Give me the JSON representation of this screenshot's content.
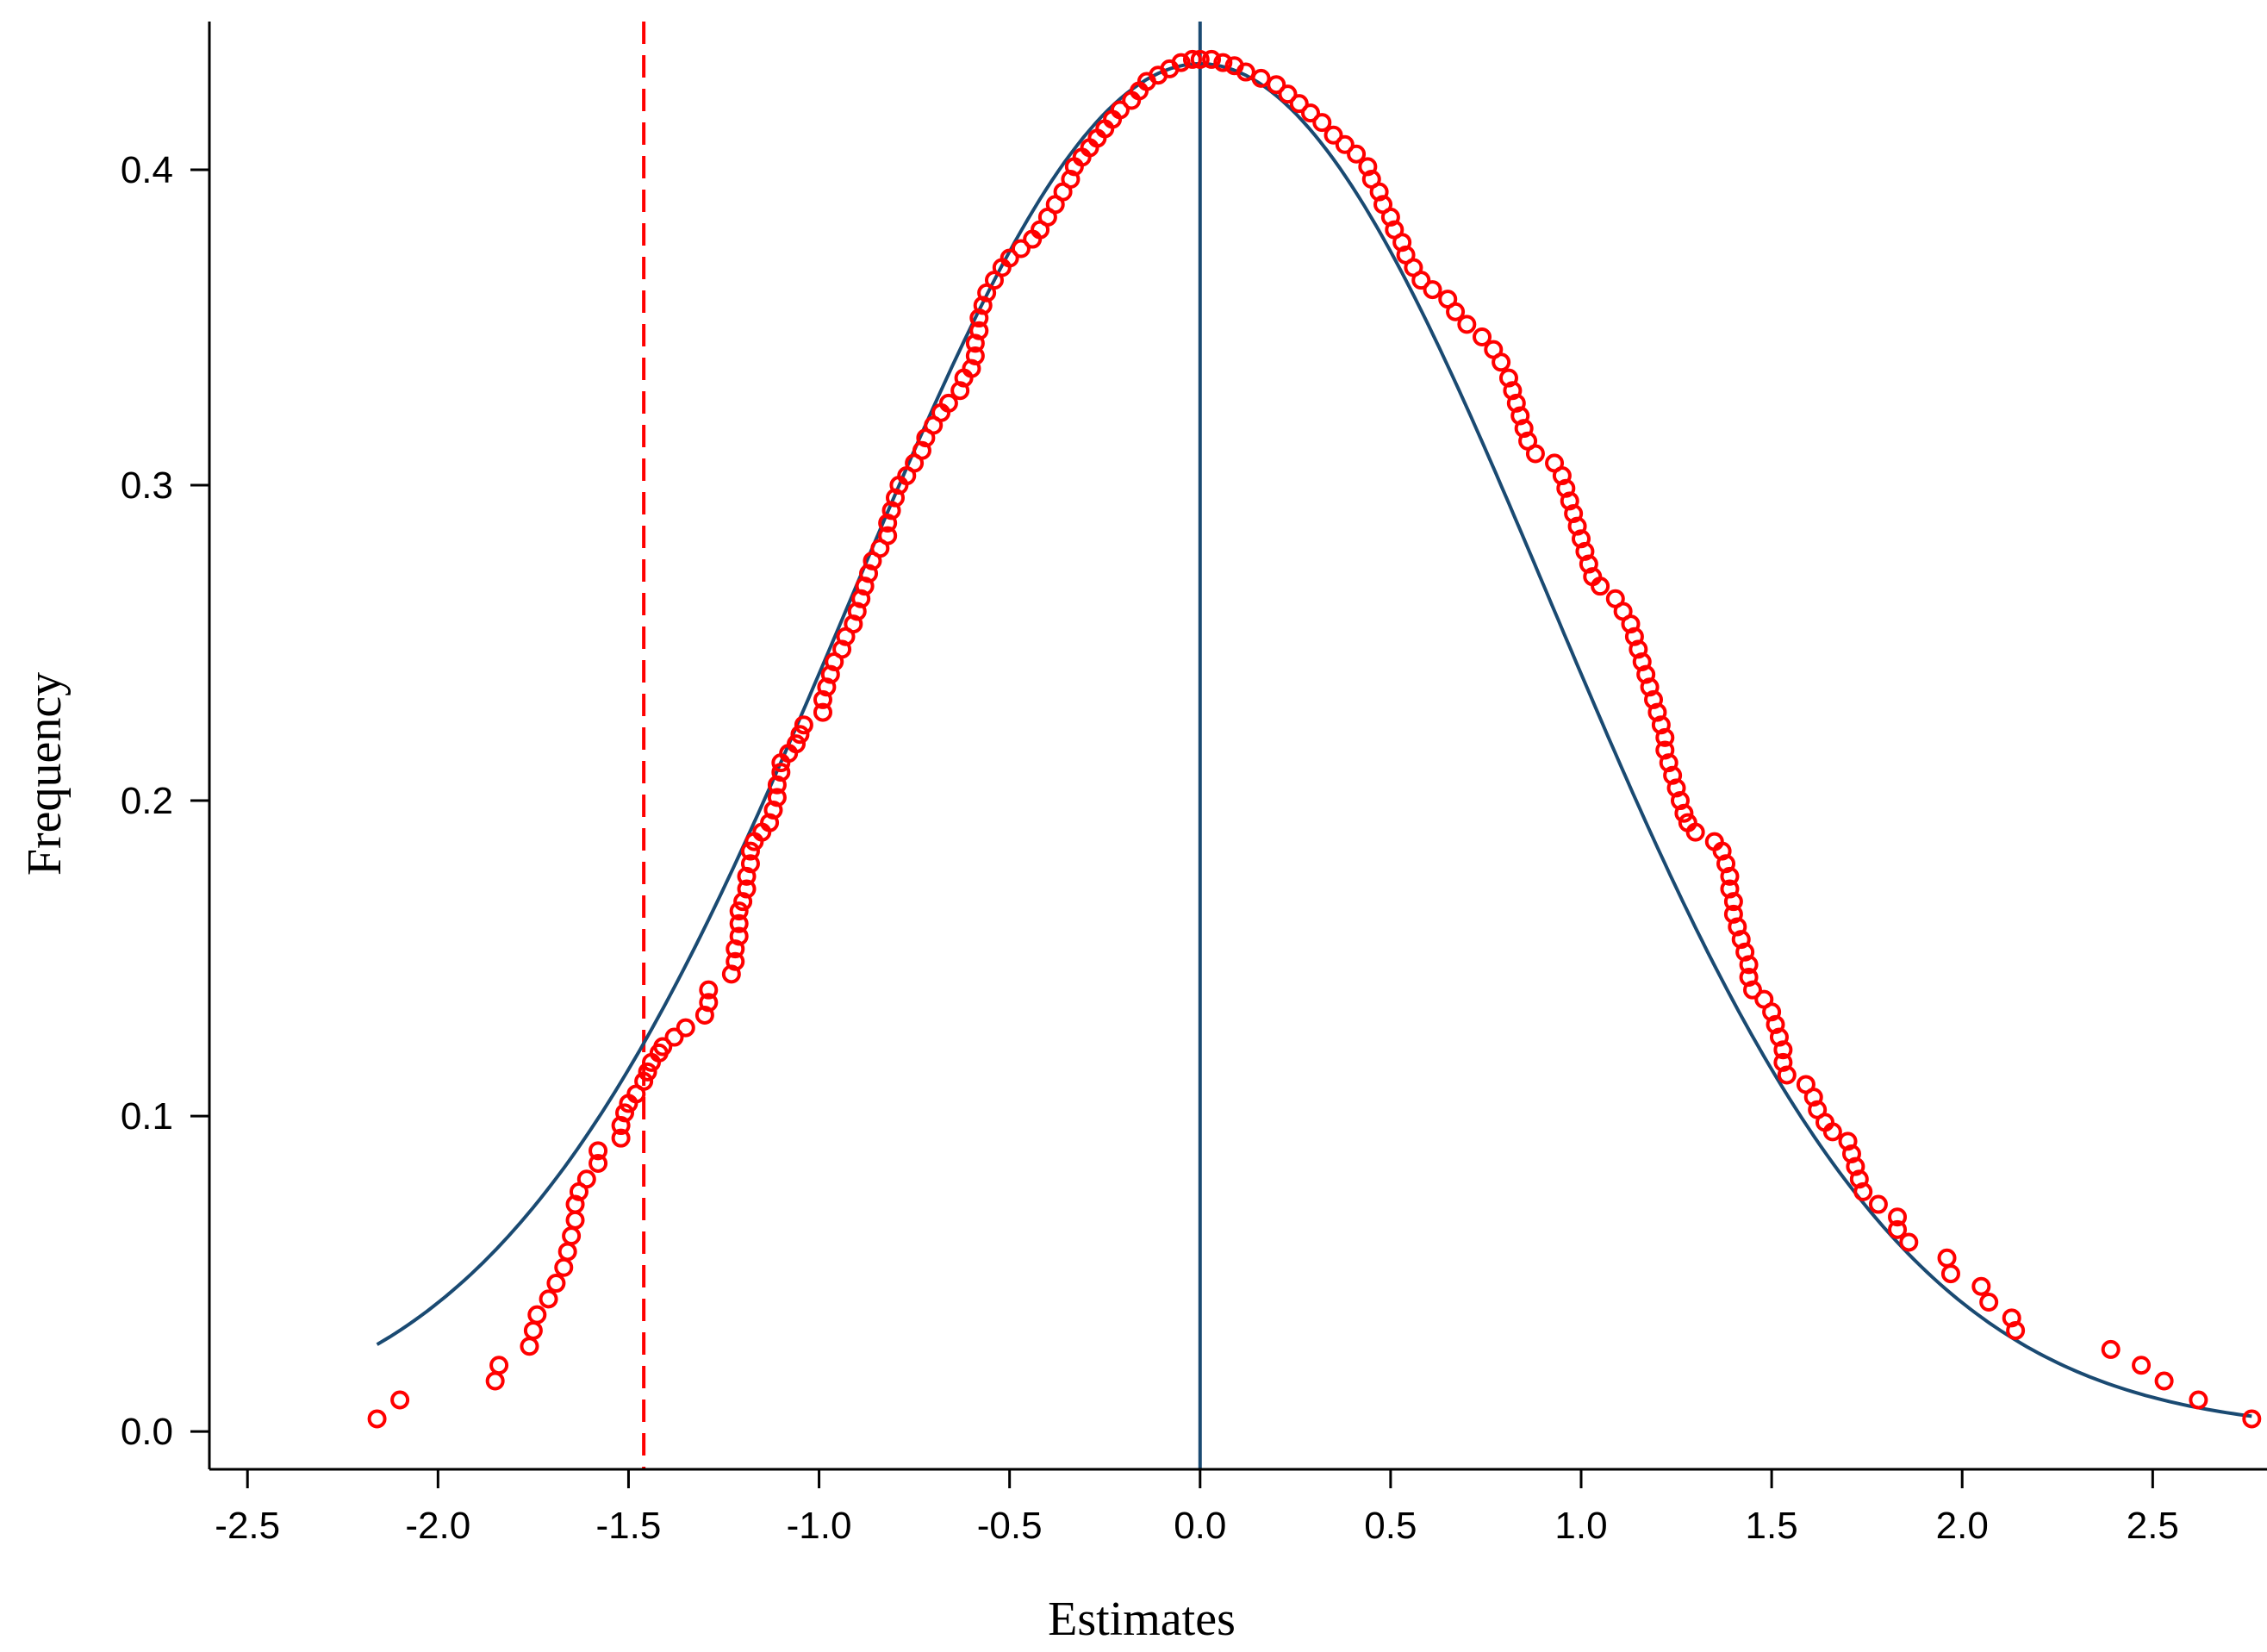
{
  "chart_data": {
    "type": "scatter",
    "xlabel": "Estimates",
    "ylabel": "Frequency",
    "xlim": [
      -2.6,
      2.8
    ],
    "ylim": [
      -0.012,
      0.447
    ],
    "xticks": [
      -2.5,
      -2.0,
      -1.5,
      -1.0,
      -0.5,
      0.0,
      0.5,
      1.0,
      1.5,
      2.0,
      2.5
    ],
    "xtick_labels": [
      "-2.5",
      "-2.0",
      "-1.5",
      "-1.0",
      "-0.5",
      "0.0",
      "0.5",
      "1.0",
      "1.5",
      "2.0",
      "2.5"
    ],
    "yticks": [
      0.0,
      0.1,
      0.2,
      0.3,
      0.4
    ],
    "ytick_labels": [
      "0.0",
      "0.1",
      "0.2",
      "0.3",
      "0.4"
    ],
    "grid": false,
    "reference_lines": {
      "dashed_vertical_x": -1.46,
      "solid_vertical_x": 0.0
    },
    "normal_curve": {
      "mean": 0.0,
      "sd": 0.92,
      "x_from": -2.16,
      "x_to": 2.76
    },
    "colors": {
      "points": "#ff0000",
      "curve": "#1a4a72",
      "dashed_line": "#ff0000",
      "solid_line": "#1a4a72"
    },
    "points": [
      [
        -2.16,
        0.004
      ],
      [
        -2.1,
        0.01
      ],
      [
        -1.85,
        0.016
      ],
      [
        -1.84,
        0.021
      ],
      [
        -1.76,
        0.027
      ],
      [
        -1.75,
        0.032
      ],
      [
        -1.74,
        0.037
      ],
      [
        -1.71,
        0.042
      ],
      [
        -1.69,
        0.047
      ],
      [
        -1.67,
        0.052
      ],
      [
        -1.66,
        0.057
      ],
      [
        -1.65,
        0.062
      ],
      [
        -1.64,
        0.067
      ],
      [
        -1.64,
        0.072
      ],
      [
        -1.63,
        0.076
      ],
      [
        -1.61,
        0.08
      ],
      [
        -1.58,
        0.085
      ],
      [
        -1.58,
        0.089
      ],
      [
        -1.52,
        0.093
      ],
      [
        -1.52,
        0.097
      ],
      [
        -1.51,
        0.101
      ],
      [
        -1.5,
        0.104
      ],
      [
        -1.48,
        0.107
      ],
      [
        -1.46,
        0.111
      ],
      [
        -1.45,
        0.114
      ],
      [
        -1.44,
        0.117
      ],
      [
        -1.42,
        0.12
      ],
      [
        -1.41,
        0.122
      ],
      [
        -1.38,
        0.125
      ],
      [
        -1.35,
        0.128
      ],
      [
        -1.3,
        0.132
      ],
      [
        -1.29,
        0.136
      ],
      [
        -1.29,
        0.14
      ],
      [
        -1.23,
        0.145
      ],
      [
        -1.22,
        0.149
      ],
      [
        -1.22,
        0.153
      ],
      [
        -1.21,
        0.157
      ],
      [
        -1.21,
        0.161
      ],
      [
        -1.21,
        0.165
      ],
      [
        -1.2,
        0.168
      ],
      [
        -1.19,
        0.172
      ],
      [
        -1.19,
        0.176
      ],
      [
        -1.18,
        0.18
      ],
      [
        -1.18,
        0.184
      ],
      [
        -1.17,
        0.187
      ],
      [
        -1.15,
        0.19
      ],
      [
        -1.13,
        0.193
      ],
      [
        -1.12,
        0.197
      ],
      [
        -1.11,
        0.201
      ],
      [
        -1.11,
        0.205
      ],
      [
        -1.1,
        0.209
      ],
      [
        -1.1,
        0.212
      ],
      [
        -1.08,
        0.215
      ],
      [
        -1.06,
        0.218
      ],
      [
        -1.05,
        0.221
      ],
      [
        -1.04,
        0.224
      ],
      [
        -0.99,
        0.228
      ],
      [
        -0.99,
        0.232
      ],
      [
        -0.98,
        0.236
      ],
      [
        -0.97,
        0.24
      ],
      [
        -0.96,
        0.244
      ],
      [
        -0.94,
        0.248
      ],
      [
        -0.93,
        0.252
      ],
      [
        -0.91,
        0.256
      ],
      [
        -0.9,
        0.26
      ],
      [
        -0.89,
        0.264
      ],
      [
        -0.88,
        0.268
      ],
      [
        -0.87,
        0.272
      ],
      [
        -0.86,
        0.276
      ],
      [
        -0.84,
        0.28
      ],
      [
        -0.82,
        0.284
      ],
      [
        -0.82,
        0.288
      ],
      [
        -0.81,
        0.292
      ],
      [
        -0.8,
        0.296
      ],
      [
        -0.79,
        0.3
      ],
      [
        -0.77,
        0.303
      ],
      [
        -0.75,
        0.307
      ],
      [
        -0.73,
        0.311
      ],
      [
        -0.72,
        0.315
      ],
      [
        -0.7,
        0.319
      ],
      [
        -0.68,
        0.323
      ],
      [
        -0.66,
        0.326
      ],
      [
        -0.63,
        0.33
      ],
      [
        -0.62,
        0.334
      ],
      [
        -0.6,
        0.337
      ],
      [
        -0.59,
        0.341
      ],
      [
        -0.59,
        0.345
      ],
      [
        -0.58,
        0.349
      ],
      [
        -0.58,
        0.353
      ],
      [
        -0.57,
        0.357
      ],
      [
        -0.56,
        0.361
      ],
      [
        -0.54,
        0.365
      ],
      [
        -0.52,
        0.369
      ],
      [
        -0.5,
        0.372
      ],
      [
        -0.47,
        0.375
      ],
      [
        -0.44,
        0.378
      ],
      [
        -0.42,
        0.381
      ],
      [
        -0.4,
        0.385
      ],
      [
        -0.38,
        0.389
      ],
      [
        -0.36,
        0.393
      ],
      [
        -0.34,
        0.397
      ],
      [
        -0.33,
        0.401
      ],
      [
        -0.31,
        0.404
      ],
      [
        -0.29,
        0.407
      ],
      [
        -0.27,
        0.41
      ],
      [
        -0.25,
        0.413
      ],
      [
        -0.23,
        0.416
      ],
      [
        -0.21,
        0.419
      ],
      [
        -0.18,
        0.422
      ],
      [
        -0.16,
        0.425
      ],
      [
        -0.14,
        0.428
      ],
      [
        -0.11,
        0.43
      ],
      [
        -0.08,
        0.432
      ],
      [
        -0.05,
        0.434
      ],
      [
        -0.02,
        0.435
      ],
      [
        0.0,
        0.435
      ],
      [
        0.03,
        0.435
      ],
      [
        0.06,
        0.434
      ],
      [
        0.09,
        0.433
      ],
      [
        0.12,
        0.431
      ],
      [
        0.16,
        0.429
      ],
      [
        0.2,
        0.427
      ],
      [
        0.23,
        0.424
      ],
      [
        0.26,
        0.421
      ],
      [
        0.29,
        0.418
      ],
      [
        0.32,
        0.415
      ],
      [
        0.35,
        0.411
      ],
      [
        0.38,
        0.408
      ],
      [
        0.41,
        0.405
      ],
      [
        0.44,
        0.401
      ],
      [
        0.45,
        0.397
      ],
      [
        0.47,
        0.393
      ],
      [
        0.48,
        0.389
      ],
      [
        0.5,
        0.385
      ],
      [
        0.51,
        0.381
      ],
      [
        0.53,
        0.377
      ],
      [
        0.54,
        0.373
      ],
      [
        0.56,
        0.369
      ],
      [
        0.58,
        0.365
      ],
      [
        0.61,
        0.362
      ],
      [
        0.65,
        0.359
      ],
      [
        0.67,
        0.355
      ],
      [
        0.7,
        0.351
      ],
      [
        0.74,
        0.347
      ],
      [
        0.77,
        0.343
      ],
      [
        0.79,
        0.339
      ],
      [
        0.81,
        0.334
      ],
      [
        0.82,
        0.33
      ],
      [
        0.83,
        0.326
      ],
      [
        0.84,
        0.322
      ],
      [
        0.85,
        0.318
      ],
      [
        0.86,
        0.314
      ],
      [
        0.88,
        0.31
      ],
      [
        0.93,
        0.307
      ],
      [
        0.95,
        0.303
      ],
      [
        0.96,
        0.299
      ],
      [
        0.97,
        0.295
      ],
      [
        0.98,
        0.291
      ],
      [
        0.99,
        0.287
      ],
      [
        1.0,
        0.283
      ],
      [
        1.01,
        0.279
      ],
      [
        1.02,
        0.275
      ],
      [
        1.03,
        0.271
      ],
      [
        1.05,
        0.268
      ],
      [
        1.09,
        0.264
      ],
      [
        1.11,
        0.26
      ],
      [
        1.13,
        0.256
      ],
      [
        1.14,
        0.252
      ],
      [
        1.15,
        0.248
      ],
      [
        1.16,
        0.244
      ],
      [
        1.17,
        0.24
      ],
      [
        1.18,
        0.236
      ],
      [
        1.19,
        0.232
      ],
      [
        1.2,
        0.228
      ],
      [
        1.21,
        0.224
      ],
      [
        1.22,
        0.22
      ],
      [
        1.22,
        0.216
      ],
      [
        1.23,
        0.212
      ],
      [
        1.24,
        0.208
      ],
      [
        1.25,
        0.204
      ],
      [
        1.26,
        0.2
      ],
      [
        1.27,
        0.196
      ],
      [
        1.28,
        0.193
      ],
      [
        1.3,
        0.19
      ],
      [
        1.35,
        0.187
      ],
      [
        1.37,
        0.184
      ],
      [
        1.38,
        0.18
      ],
      [
        1.39,
        0.176
      ],
      [
        1.39,
        0.172
      ],
      [
        1.4,
        0.168
      ],
      [
        1.4,
        0.164
      ],
      [
        1.41,
        0.16
      ],
      [
        1.42,
        0.156
      ],
      [
        1.43,
        0.152
      ],
      [
        1.44,
        0.148
      ],
      [
        1.44,
        0.144
      ],
      [
        1.45,
        0.14
      ],
      [
        1.48,
        0.137
      ],
      [
        1.5,
        0.133
      ],
      [
        1.51,
        0.129
      ],
      [
        1.52,
        0.125
      ],
      [
        1.53,
        0.121
      ],
      [
        1.53,
        0.117
      ],
      [
        1.54,
        0.113
      ],
      [
        1.59,
        0.11
      ],
      [
        1.61,
        0.106
      ],
      [
        1.62,
        0.102
      ],
      [
        1.64,
        0.098
      ],
      [
        1.66,
        0.095
      ],
      [
        1.7,
        0.092
      ],
      [
        1.71,
        0.088
      ],
      [
        1.72,
        0.084
      ],
      [
        1.73,
        0.08
      ],
      [
        1.74,
        0.076
      ],
      [
        1.78,
        0.072
      ],
      [
        1.83,
        0.068
      ],
      [
        1.83,
        0.064
      ],
      [
        1.86,
        0.06
      ],
      [
        1.96,
        0.055
      ],
      [
        1.97,
        0.05
      ],
      [
        2.05,
        0.046
      ],
      [
        2.07,
        0.041
      ],
      [
        2.13,
        0.036
      ],
      [
        2.14,
        0.032
      ],
      [
        2.39,
        0.026
      ],
      [
        2.47,
        0.021
      ],
      [
        2.53,
        0.016
      ],
      [
        2.62,
        0.01
      ],
      [
        2.76,
        0.004
      ]
    ]
  }
}
